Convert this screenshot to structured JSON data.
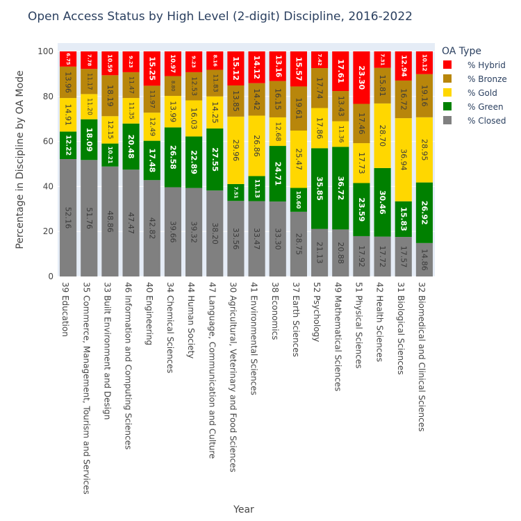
{
  "chart_data": {
    "type": "bar",
    "stacked": true,
    "title": "Open Access Status by High Level (2-digit) Discipline, 2016-2022",
    "xlabel": "Year",
    "ylabel": "Percentage in Discipline by OA Mode",
    "ylim": [
      0,
      100
    ],
    "yticks": [
      0,
      20,
      40,
      60,
      80,
      100
    ],
    "grid": true,
    "legend_title": "OA Type",
    "legend_position": "top-right",
    "categories": [
      "39 Education",
      "35 Commerce, Management, Tourism and Services",
      "33 Built Environment and Design",
      "46 Information and Computing Sciences",
      "40 Engineering",
      "34 Chemical Sciences",
      "44 Human Society",
      "47 Language, Communication and Culture",
      "30 Agricultural, Veterinary and Food Sciences",
      "41 Environmental Sciences",
      "38 Economics",
      "37 Earth Sciences",
      "52 Psychology",
      "49 Mathematical Sciences",
      "51 Physical Sciences",
      "42 Health Sciences",
      "31 Biological Sciences",
      "32 Biomedical and Clinical Sciences"
    ],
    "series": [
      {
        "name": "% Closed",
        "color": "#808080",
        "label_color": "#3a3a3a",
        "values": [
          52.16,
          51.76,
          48.86,
          47.47,
          42.82,
          39.66,
          39.32,
          38.2,
          33.56,
          33.47,
          33.3,
          28.75,
          21.13,
          20.88,
          17.92,
          17.72,
          17.57,
          14.86
        ]
      },
      {
        "name": "% Green",
        "color": "#008000",
        "label_color": "#ffffff",
        "values": [
          12.22,
          18.09,
          10.21,
          20.48,
          17.48,
          26.58,
          22.89,
          27.55,
          7.51,
          11.13,
          24.71,
          10.6,
          35.85,
          36.72,
          23.59,
          30.46,
          15.83,
          26.92
        ]
      },
      {
        "name": "% Gold",
        "color": "#ffd700",
        "label_color": "#3a3a3a",
        "values": [
          14.91,
          11.2,
          12.15,
          11.35,
          12.49,
          13.99,
          16.03,
          14.25,
          29.96,
          26.86,
          12.68,
          25.47,
          17.86,
          11.36,
          17.73,
          28.7,
          36.94,
          28.95
        ]
      },
      {
        "name": "% Bronze",
        "color": "#b8860b",
        "label_color": "#3a3a3a",
        "values": [
          13.96,
          11.17,
          18.19,
          11.47,
          11.97,
          8.8,
          12.53,
          11.83,
          13.85,
          14.42,
          16.15,
          19.61,
          17.74,
          13.43,
          17.46,
          15.81,
          16.72,
          19.16
        ]
      },
      {
        "name": "% Hybrid",
        "color": "#ff0000",
        "label_color": "#ffffff",
        "values": [
          6.75,
          7.78,
          10.59,
          9.23,
          15.25,
          10.97,
          9.23,
          8.16,
          15.12,
          14.12,
          13.16,
          15.57,
          7.42,
          17.61,
          23.3,
          7.31,
          12.94,
          10.12
        ]
      }
    ]
  }
}
